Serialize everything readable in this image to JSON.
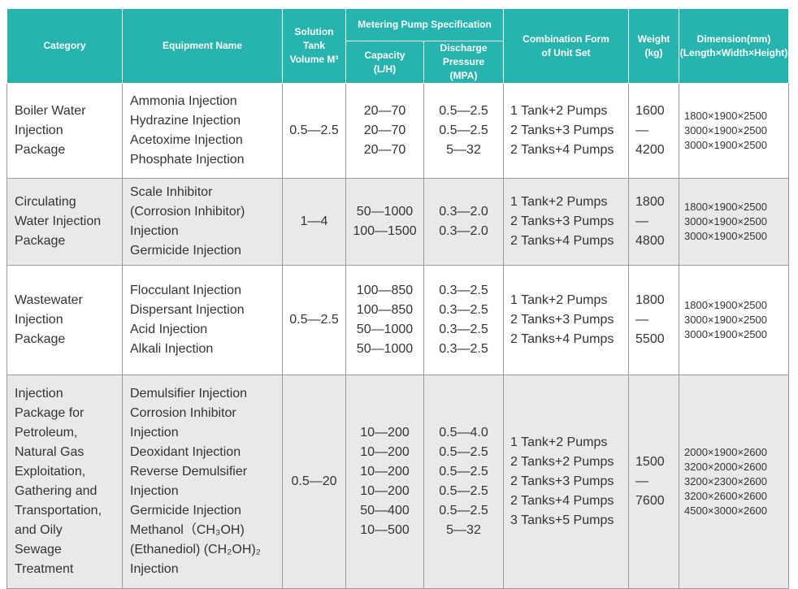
{
  "table": {
    "header": {
      "category": "Category",
      "equipment": "Equipment Name",
      "volume": [
        "Solution Tank",
        "Volume M³"
      ],
      "pump": "Metering Pump Specification",
      "capacity": [
        "Capacity",
        "(L/H)"
      ],
      "pressure": [
        "Discharge Pressure",
        "(MPA)"
      ],
      "combination": [
        "Combination Form",
        "of Unit Set"
      ],
      "weight": [
        "Weight",
        "(kg)"
      ],
      "dimension": [
        "Dimension(mm)",
        "(Length×Width×Height)"
      ]
    },
    "rows": [
      {
        "category": [
          "Boiler Water",
          "Injection",
          "Package"
        ],
        "equipment": [
          "Ammonia Injection",
          "Hydrazine Injection",
          "Acetoxime Injection",
          "Phosphate Injection"
        ],
        "volume": "0.5—2.5",
        "capacity": [
          "20—70",
          "20—70",
          "20—70"
        ],
        "pressure": [
          "0.5—2.5",
          "0.5—2.5",
          "5—32"
        ],
        "combination": [
          "1 Tank+2 Pumps",
          "2 Tanks+3 Pumps",
          "2 Tanks+4 Pumps"
        ],
        "weight": "1600—4200",
        "dimension": [
          "1800×1900×2500",
          "3000×1900×2500",
          "3000×1900×2500"
        ]
      },
      {
        "category": [
          "Circulating",
          "Water Injection",
          "Package"
        ],
        "equipment": [
          "Scale Inhibitor",
          "(Corrosion Inhibitor)",
          "Injection",
          "Germicide Injection"
        ],
        "volume": "1—4",
        "capacity": [
          "50—1000",
          "100—1500"
        ],
        "pressure": [
          "0.3—2.0",
          "0.3—2.0"
        ],
        "combination": [
          "1 Tank+2 Pumps",
          "2 Tanks+3 Pumps",
          "2 Tanks+4 Pumps"
        ],
        "weight": "1800—4800",
        "dimension": [
          "1800×1900×2500",
          "3000×1900×2500",
          "3000×1900×2500"
        ]
      },
      {
        "category": [
          "Wastewater",
          "Injection",
          "Package"
        ],
        "equipment": [
          "Flocculant Injection",
          "Dispersant Injection",
          "Acid Injection",
          "Alkali Injection"
        ],
        "volume": "0.5—2.5",
        "capacity": [
          "100—850",
          "100—850",
          "50—1000",
          "50—1000"
        ],
        "pressure": [
          "0.3—2.5",
          "0.3—2.5",
          "0.3—2.5",
          "0.3—2.5"
        ],
        "combination": [
          "1 Tank+2 Pumps",
          "2 Tanks+3 Pumps",
          "2 Tanks+4 Pumps"
        ],
        "weight": "1800—5500",
        "dimension": [
          "1800×1900×2500",
          "3000×1900×2500",
          "3000×1900×2500"
        ]
      },
      {
        "category": [
          "Injection",
          "Package for",
          "Petroleum,",
          "Natural Gas",
          "Exploitation,",
          "Gathering and",
          "Transportation,",
          "and Oily",
          "Sewage",
          "Treatment"
        ],
        "equipment": [
          "Demulsifier Injection",
          "Corrosion Inhibitor",
          "Injection",
          "Deoxidant Injection",
          "Reverse Demulsifier",
          "Injection",
          "Germicide Injection",
          "Methanol（CH₃OH)",
          "(Ethanediol) (CH₂OH)₂",
          "Injection"
        ],
        "volume": "0.5—20",
        "capacity": [
          "10—200",
          "10—200",
          "10—200",
          "10—200",
          "50—400",
          "10—500"
        ],
        "pressure": [
          "0.5—4.0",
          "0.5—2.5",
          "0.5—2.5",
          "0.5—2.5",
          "0.5—2.5",
          "5—32"
        ],
        "combination": [
          "1 Tank+2 Pumps",
          "2 Tanks+2 Pumps",
          "2 Tanks+3 Pumps",
          "2 Tanks+4 Pumps",
          "3 Tanks+5 Pumps"
        ],
        "weight": "1500—7600",
        "dimension": [
          "2000×1900×2600",
          "3200×2000×2600",
          "3200×2300×2600",
          "3200×2600×2600",
          "4500×3000×2600"
        ]
      }
    ]
  }
}
